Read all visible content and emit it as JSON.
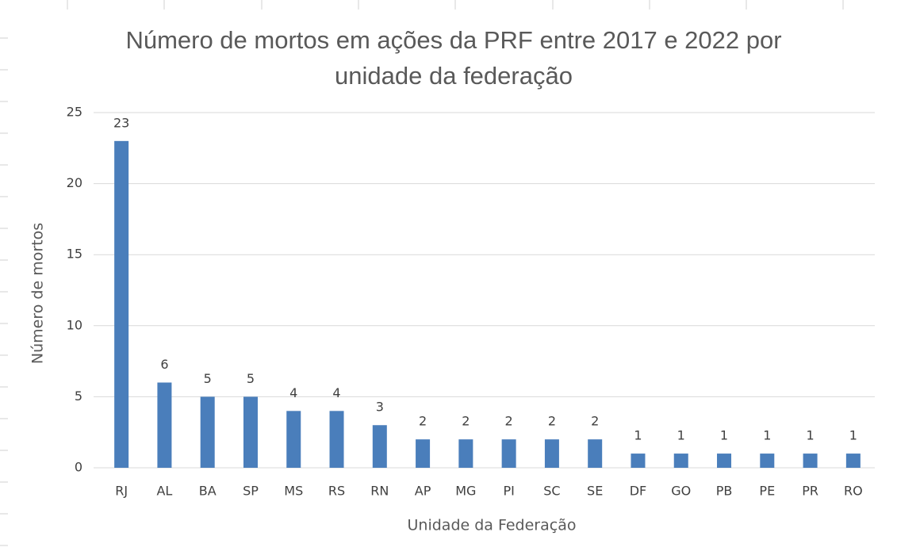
{
  "chart_data": {
    "type": "bar",
    "title": "Número de mortos em ações da PRF entre 2017 e 2022 por unidade da federação",
    "x_label": "Unidade da Federação",
    "y_label": "Número de mortos",
    "categories": [
      "RJ",
      "AL",
      "BA",
      "SP",
      "MS",
      "RS",
      "RN",
      "AP",
      "MG",
      "PI",
      "SC",
      "SE",
      "DF",
      "GO",
      "PB",
      "PE",
      "PR",
      "RO"
    ],
    "values": [
      23,
      6,
      5,
      5,
      4,
      4,
      3,
      2,
      2,
      2,
      2,
      2,
      1,
      1,
      1,
      1,
      1,
      1
    ],
    "color": "#4a7ebb",
    "ylim": [
      0,
      25
    ],
    "yticks": [
      0,
      5,
      10,
      15,
      20,
      25
    ],
    "grid": true
  }
}
